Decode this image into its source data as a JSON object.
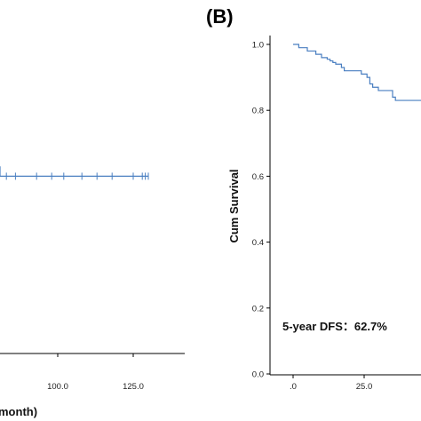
{
  "chart_data": [
    {
      "type": "line",
      "panel": "A",
      "xlabel": "month)",
      "xticks": [
        "100.0",
        "125.0"
      ],
      "x_tick_values": [
        100,
        125
      ],
      "line_color": "#4a7fc1",
      "series": [
        {
          "x": [
            0,
            5,
            6,
            130
          ],
          "y": [
            0.63,
            0.63,
            0.6,
            0.6
          ]
        }
      ],
      "censor_x": [
        5,
        8,
        13,
        18,
        68,
        70,
        71,
        73,
        75,
        77,
        79,
        83,
        86,
        93,
        98,
        102,
        108,
        113,
        118,
        125,
        128,
        129,
        130
      ]
    },
    {
      "type": "line",
      "panel": "B",
      "panel_label": "(B)",
      "ylabel": "Cum Survival",
      "yticks": [
        "1.0",
        "0.8",
        "0.6",
        "0.4",
        "0.2",
        "0.0"
      ],
      "y_tick_values": [
        1.0,
        0.8,
        0.6,
        0.4,
        0.2,
        0.0
      ],
      "xticks": [
        ".0",
        "25.0"
      ],
      "x_tick_values": [
        0,
        25
      ],
      "ylim": [
        0,
        1
      ],
      "annotation": "5-year DFS：62.7%",
      "line_color": "#4a7fc1",
      "series": [
        {
          "x": [
            0,
            2,
            5,
            8,
            10,
            12,
            13,
            14,
            15,
            17,
            18,
            20,
            24,
            26,
            27,
            28,
            30,
            34,
            35,
            36
          ],
          "y": [
            1.0,
            0.99,
            0.98,
            0.97,
            0.96,
            0.955,
            0.95,
            0.945,
            0.94,
            0.93,
            0.92,
            0.92,
            0.91,
            0.9,
            0.88,
            0.87,
            0.86,
            0.86,
            0.84,
            0.83
          ]
        }
      ]
    }
  ]
}
